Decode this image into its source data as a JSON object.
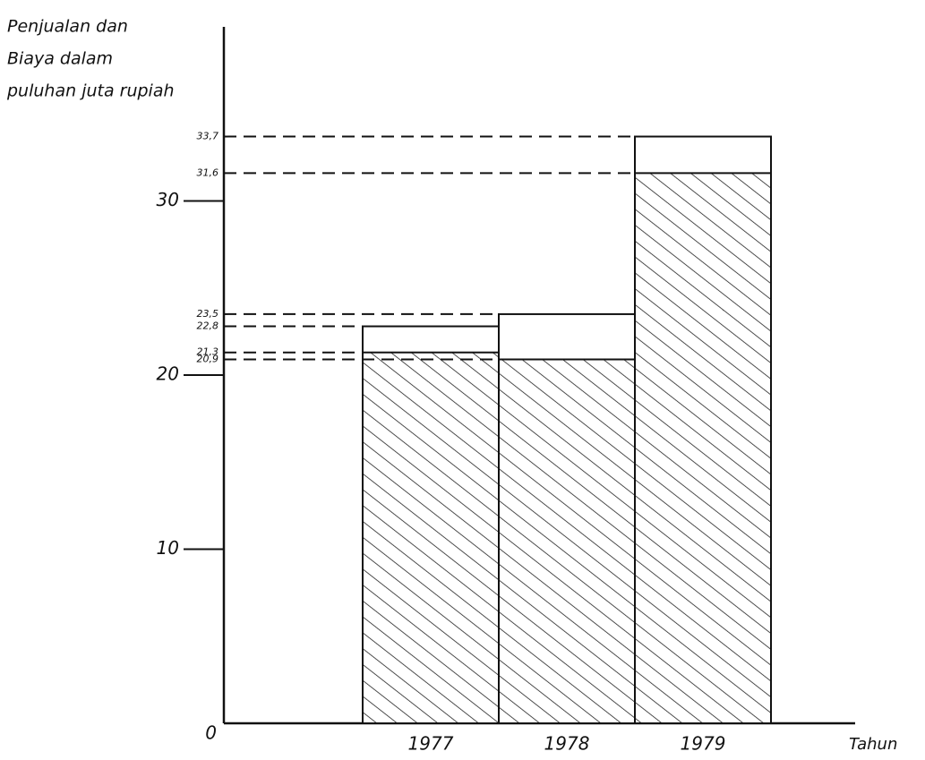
{
  "chart_data": {
    "type": "bar",
    "y_label": [
      "Penjualan dan",
      "Biaya dalam",
      "puluhan juta rupiah"
    ],
    "x_label": "Tahun",
    "categories": [
      "1977",
      "1978",
      "1979"
    ],
    "series": [
      {
        "color": "#ffffff",
        "values": [
          22.8,
          23.5,
          33.7
        ],
        "value_labels": [
          "22,8",
          "23,5",
          "33,7"
        ]
      },
      {
        "color": "#222222",
        "hatch": true,
        "values": [
          21.3,
          20.9,
          31.6
        ],
        "value_labels": [
          "21,3",
          "20,9",
          "31,6"
        ]
      }
    ],
    "ylim": [
      0,
      40
    ],
    "yticks": [
      0,
      10,
      20,
      30
    ]
  }
}
